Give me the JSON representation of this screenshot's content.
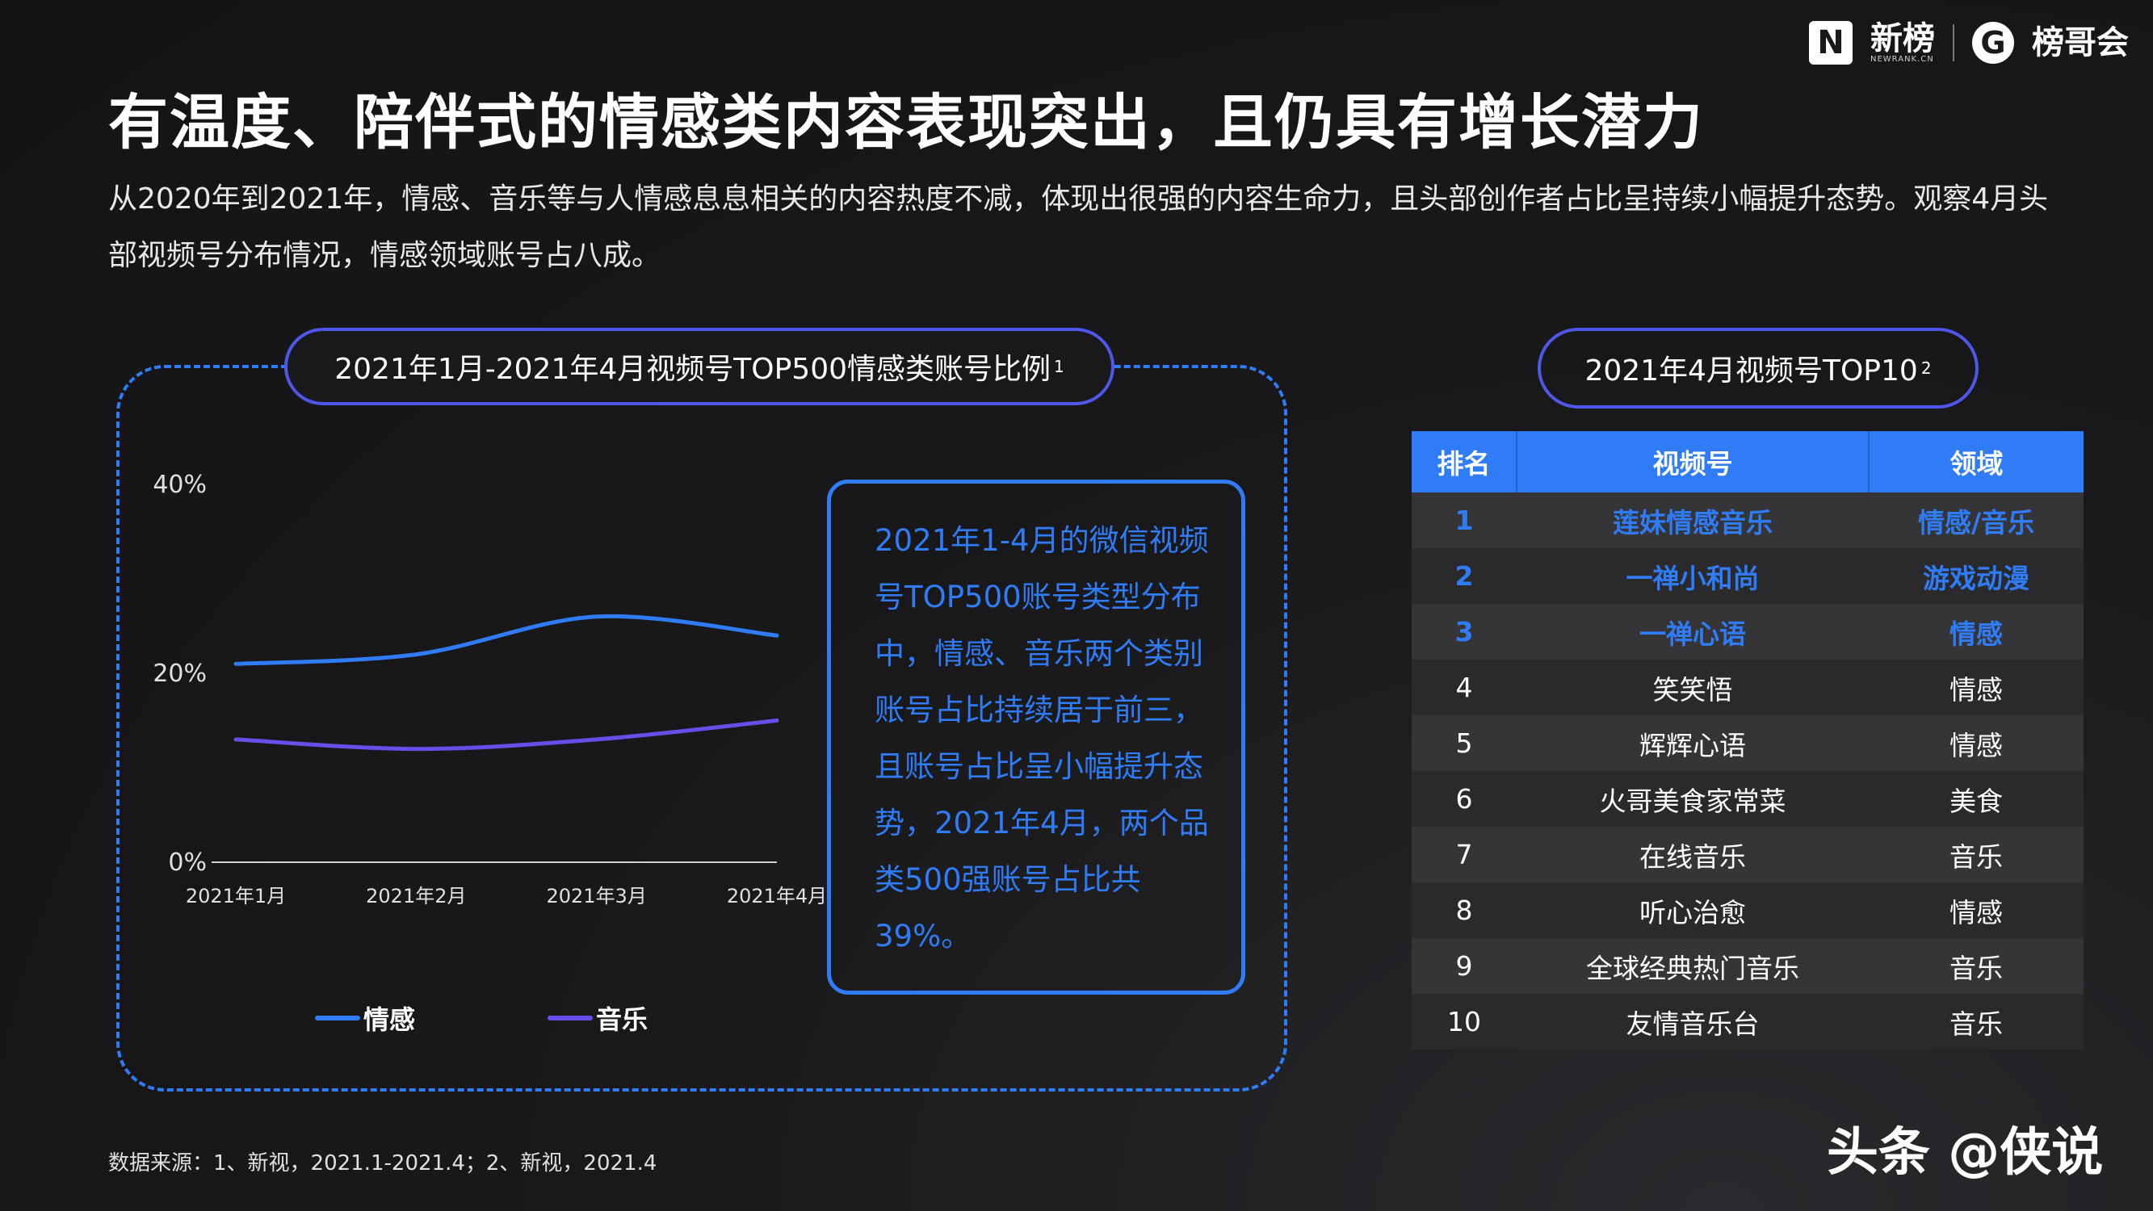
{
  "logo": {
    "brand1": "新榜",
    "brand1_sub": "NEWRANK.CN",
    "brand2": "榜哥会"
  },
  "title": "有温度、陪伴式的情感类内容表现突出，且仍具有增长潜力",
  "intro": "从2020年到2021年，情感、音乐等与人情感息息相关的内容热度不减，体现出很强的内容生命力，且头部创作者占比呈持续小幅提升态势。观察4月头部视频号分布情况，情感领域账号占八成。",
  "chart_pill": {
    "text": "2021年1月-2021年4月视频号TOP500情感类账号比例",
    "sup": "1"
  },
  "chart_data": {
    "type": "line",
    "title": "2021年1月-2021年4月视频号TOP500情感类账号比例",
    "categories": [
      "2021年1月",
      "2021年2月",
      "2021年3月",
      "2021年4月"
    ],
    "series": [
      {
        "name": "情感",
        "values": [
          21,
          22,
          26,
          24
        ],
        "color": "#2f7cf6"
      },
      {
        "name": "音乐",
        "values": [
          13,
          12,
          13,
          15
        ],
        "color": "#6a4ce8"
      }
    ],
    "yticks": [
      "0%",
      "20%",
      "40%"
    ],
    "ylim": [
      0,
      40
    ],
    "grid": false,
    "legend": "bottom"
  },
  "note": "2021年1-4月的微信视频号TOP500账号类型分布中，情感、音乐两个类别账号占比持续居于前三，且账号占比呈小幅提升态势，2021年4月，两个品类500强账号占比共39%。",
  "table_pill": {
    "text": "2021年4月视频号TOP10",
    "sup": "2"
  },
  "table": {
    "headers": [
      "排名",
      "视频号",
      "领域"
    ],
    "rows": [
      {
        "rank": "1",
        "name": "莲妹情感音乐",
        "domain": "情感/音乐",
        "highlight": true
      },
      {
        "rank": "2",
        "name": "一禅小和尚",
        "domain": "游戏动漫",
        "highlight": true
      },
      {
        "rank": "3",
        "name": "一禅心语",
        "domain": "情感",
        "highlight": true
      },
      {
        "rank": "4",
        "name": "笑笑悟",
        "domain": "情感",
        "highlight": false
      },
      {
        "rank": "5",
        "name": "辉辉心语",
        "domain": "情感",
        "highlight": false
      },
      {
        "rank": "6",
        "name": "火哥美食家常菜",
        "domain": "美食",
        "highlight": false
      },
      {
        "rank": "7",
        "name": "在线音乐",
        "domain": "音乐",
        "highlight": false
      },
      {
        "rank": "8",
        "name": "听心治愈",
        "domain": "情感",
        "highlight": false
      },
      {
        "rank": "9",
        "name": "全球经典热门音乐",
        "domain": "音乐",
        "highlight": false
      },
      {
        "rank": "10",
        "name": "友情音乐台",
        "domain": "音乐",
        "highlight": false
      }
    ]
  },
  "source": "数据来源：1、新视，2021.1-2021.4；2、新视，2021.4",
  "watermark": "头条 @侠说"
}
